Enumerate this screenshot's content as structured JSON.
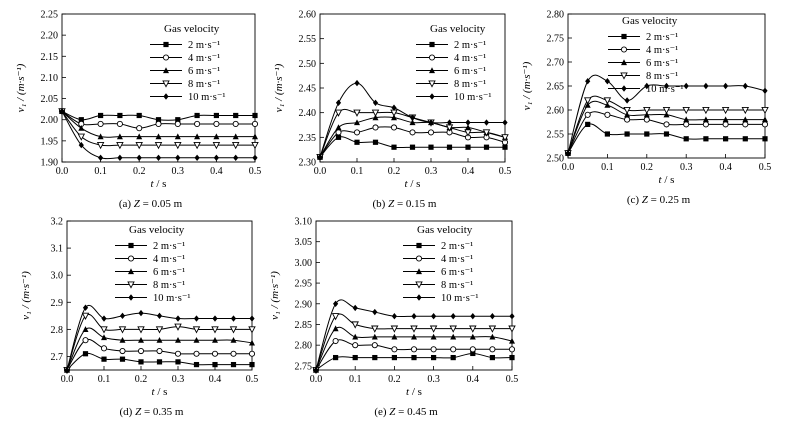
{
  "figure": {
    "series_labels": [
      "2 m·s⁻¹",
      "4 m·s⁻¹",
      "6 m·s⁻¹",
      "8 m·s⁻¹",
      "10 m·s⁻¹"
    ],
    "markers": [
      "square",
      "circle-open",
      "triangle",
      "triangle-down-open",
      "diamond"
    ]
  },
  "chart_data": [
    {
      "type": "line",
      "caption_prefix": "(a) ",
      "caption_var": "Z",
      "caption_suffix": " = 0.05 m",
      "xlabel_var": "t",
      "xlabel_unit": " / s",
      "ylabel": "v₁ / (m·s⁻¹)",
      "legend_title": "Gas velocity",
      "xlim": [
        0,
        0.5
      ],
      "ylim": [
        1.9,
        2.25
      ],
      "xticks": [
        0.0,
        0.1,
        0.2,
        0.3,
        0.4,
        0.5
      ],
      "xtick_labels": [
        "0.0",
        "0.1",
        "0.2",
        "0.3",
        "0.4",
        "0.5"
      ],
      "yticks": [
        1.9,
        1.95,
        2.0,
        2.05,
        2.1,
        2.15,
        2.2,
        2.25
      ],
      "ytick_labels": [
        "1.90",
        "1.95",
        "2.00",
        "2.05",
        "2.10",
        "2.15",
        "2.20",
        "2.25"
      ],
      "x": [
        0.0,
        0.05,
        0.1,
        0.15,
        0.2,
        0.25,
        0.3,
        0.35,
        0.4,
        0.45,
        0.5
      ],
      "series": [
        {
          "name": "2 m·s⁻¹",
          "values": [
            2.02,
            2.0,
            2.01,
            2.01,
            2.01,
            2.0,
            2.0,
            2.01,
            2.01,
            2.01,
            2.01
          ]
        },
        {
          "name": "4 m·s⁻¹",
          "values": [
            2.02,
            1.99,
            1.99,
            1.99,
            1.98,
            1.99,
            1.99,
            1.99,
            1.99,
            1.99,
            1.99
          ]
        },
        {
          "name": "6 m·s⁻¹",
          "values": [
            2.02,
            1.98,
            1.96,
            1.96,
            1.96,
            1.96,
            1.96,
            1.96,
            1.96,
            1.96,
            1.96
          ]
        },
        {
          "name": "8 m·s⁻¹",
          "values": [
            2.02,
            1.96,
            1.94,
            1.94,
            1.94,
            1.94,
            1.94,
            1.94,
            1.94,
            1.94,
            1.94
          ]
        },
        {
          "name": "10 m·s⁻¹",
          "values": [
            2.02,
            1.94,
            1.91,
            1.91,
            1.91,
            1.91,
            1.91,
            1.91,
            1.91,
            1.91,
            1.91
          ]
        }
      ]
    },
    {
      "type": "line",
      "caption_prefix": "(b) ",
      "caption_var": "Z",
      "caption_suffix": " = 0.15 m",
      "xlabel_var": "t",
      "xlabel_unit": " / s",
      "ylabel": "v₁ / (m·s⁻¹)",
      "legend_title": "Gas velocity",
      "xlim": [
        0,
        0.5
      ],
      "ylim": [
        2.3,
        2.6
      ],
      "xticks": [
        0.0,
        0.1,
        0.2,
        0.3,
        0.4,
        0.5
      ],
      "xtick_labels": [
        "0.0",
        "0.1",
        "0.2",
        "0.3",
        "0.4",
        "0.5"
      ],
      "yticks": [
        2.3,
        2.35,
        2.4,
        2.45,
        2.5,
        2.55,
        2.6
      ],
      "ytick_labels": [
        "2.30",
        "2.35",
        "2.40",
        "2.45",
        "2.50",
        "2.55",
        "2.60"
      ],
      "x": [
        0.0,
        0.05,
        0.1,
        0.15,
        0.2,
        0.25,
        0.3,
        0.35,
        0.4,
        0.45,
        0.5
      ],
      "series": [
        {
          "name": "2 m·s⁻¹",
          "values": [
            2.31,
            2.35,
            2.34,
            2.34,
            2.33,
            2.33,
            2.33,
            2.33,
            2.33,
            2.33,
            2.33
          ]
        },
        {
          "name": "4 m·s⁻¹",
          "values": [
            2.31,
            2.36,
            2.36,
            2.37,
            2.37,
            2.36,
            2.36,
            2.36,
            2.35,
            2.35,
            2.34
          ]
        },
        {
          "name": "6 m·s⁻¹",
          "values": [
            2.31,
            2.37,
            2.38,
            2.39,
            2.39,
            2.38,
            2.38,
            2.37,
            2.37,
            2.36,
            2.35
          ]
        },
        {
          "name": "8 m·s⁻¹",
          "values": [
            2.31,
            2.4,
            2.4,
            2.4,
            2.4,
            2.39,
            2.38,
            2.37,
            2.36,
            2.36,
            2.35
          ]
        },
        {
          "name": "10 m·s⁻¹",
          "values": [
            2.31,
            2.42,
            2.46,
            2.42,
            2.41,
            2.39,
            2.38,
            2.38,
            2.38,
            2.38,
            2.38
          ]
        }
      ]
    },
    {
      "type": "line",
      "caption_prefix": "(c) ",
      "caption_var": "Z",
      "caption_suffix": " = 0.25 m",
      "xlabel_var": "t",
      "xlabel_unit": " / s",
      "ylabel": "v₁ / (m·s⁻¹)",
      "legend_title": "Gas velocity",
      "xlim": [
        0,
        0.5
      ],
      "ylim": [
        2.5,
        2.8
      ],
      "xticks": [
        0.0,
        0.1,
        0.2,
        0.3,
        0.4,
        0.5
      ],
      "xtick_labels": [
        "0.0",
        "0.1",
        "0.2",
        "0.3",
        "0.4",
        "0.5"
      ],
      "yticks": [
        2.5,
        2.55,
        2.6,
        2.65,
        2.7,
        2.75,
        2.8
      ],
      "ytick_labels": [
        "2.50",
        "2.55",
        "2.60",
        "2.65",
        "2.70",
        "2.75",
        "2.80"
      ],
      "x": [
        0.0,
        0.05,
        0.1,
        0.15,
        0.2,
        0.25,
        0.3,
        0.35,
        0.4,
        0.45,
        0.5
      ],
      "series": [
        {
          "name": "2 m·s⁻¹",
          "values": [
            2.51,
            2.57,
            2.55,
            2.55,
            2.55,
            2.55,
            2.54,
            2.54,
            2.54,
            2.54,
            2.54
          ]
        },
        {
          "name": "4 m·s⁻¹",
          "values": [
            2.51,
            2.59,
            2.59,
            2.58,
            2.58,
            2.57,
            2.57,
            2.57,
            2.57,
            2.57,
            2.57
          ]
        },
        {
          "name": "6 m·s⁻¹",
          "values": [
            2.51,
            2.61,
            2.61,
            2.59,
            2.59,
            2.59,
            2.58,
            2.58,
            2.58,
            2.58,
            2.58
          ]
        },
        {
          "name": "8 m·s⁻¹",
          "values": [
            2.51,
            2.62,
            2.62,
            2.6,
            2.6,
            2.6,
            2.6,
            2.6,
            2.6,
            2.6,
            2.6
          ]
        },
        {
          "name": "10 m·s⁻¹",
          "values": [
            2.51,
            2.66,
            2.66,
            2.62,
            2.65,
            2.65,
            2.65,
            2.65,
            2.65,
            2.65,
            2.64
          ]
        }
      ]
    },
    {
      "type": "line",
      "caption_prefix": "(d) ",
      "caption_var": "Z",
      "caption_suffix": " = 0.35 m",
      "xlabel_var": "t",
      "xlabel_unit": " / s",
      "ylabel": "v₁ / (m·s⁻¹)",
      "legend_title": "Gas velocity",
      "xlim": [
        0,
        0.5
      ],
      "ylim": [
        2.65,
        3.2
      ],
      "xticks": [
        0.0,
        0.1,
        0.2,
        0.3,
        0.4,
        0.5
      ],
      "xtick_labels": [
        "0.0",
        "0.1",
        "0.2",
        "0.3",
        "0.4",
        "0.5"
      ],
      "yticks": [
        2.7,
        2.8,
        2.9,
        3.0,
        3.1,
        3.2
      ],
      "ytick_labels": [
        "2.7",
        "2.8",
        "2.9",
        "3.0",
        "3.1",
        "3.2"
      ],
      "x": [
        0.0,
        0.05,
        0.1,
        0.15,
        0.2,
        0.25,
        0.3,
        0.35,
        0.4,
        0.45,
        0.5
      ],
      "series": [
        {
          "name": "2 m·s⁻¹",
          "values": [
            2.65,
            2.71,
            2.69,
            2.69,
            2.68,
            2.68,
            2.68,
            2.67,
            2.67,
            2.67,
            2.67
          ]
        },
        {
          "name": "4 m·s⁻¹",
          "values": [
            2.65,
            2.76,
            2.73,
            2.72,
            2.72,
            2.72,
            2.71,
            2.71,
            2.71,
            2.71,
            2.71
          ]
        },
        {
          "name": "6 m·s⁻¹",
          "values": [
            2.65,
            2.8,
            2.77,
            2.76,
            2.76,
            2.76,
            2.76,
            2.76,
            2.76,
            2.76,
            2.75
          ]
        },
        {
          "name": "8 m·s⁻¹",
          "values": [
            2.65,
            2.85,
            2.8,
            2.8,
            2.8,
            2.8,
            2.81,
            2.8,
            2.8,
            2.8,
            2.8
          ]
        },
        {
          "name": "10 m·s⁻¹",
          "values": [
            2.65,
            2.88,
            2.84,
            2.85,
            2.86,
            2.85,
            2.84,
            2.84,
            2.84,
            2.84,
            2.84
          ]
        }
      ]
    },
    {
      "type": "line",
      "caption_prefix": "(e) ",
      "caption_var": "Z",
      "caption_suffix": " = 0.45 m",
      "xlabel_var": "t",
      "xlabel_unit": " / s",
      "ylabel": "v₁ / (m·s⁻¹)",
      "legend_title": "Gas velocity",
      "xlim": [
        0,
        0.5
      ],
      "ylim": [
        2.74,
        3.1
      ],
      "xticks": [
        0.0,
        0.1,
        0.2,
        0.3,
        0.4,
        0.5
      ],
      "xtick_labels": [
        "0.0",
        "0.1",
        "0.2",
        "0.3",
        "0.4",
        "0.5"
      ],
      "yticks": [
        2.75,
        2.8,
        2.85,
        2.9,
        2.95,
        3.0,
        3.05,
        3.1
      ],
      "ytick_labels": [
        "2.75",
        "2.80",
        "2.85",
        "2.90",
        "2.95",
        "3.00",
        "3.05",
        "3.10"
      ],
      "x": [
        0.0,
        0.05,
        0.1,
        0.15,
        0.2,
        0.25,
        0.3,
        0.35,
        0.4,
        0.45,
        0.5
      ],
      "series": [
        {
          "name": "2 m·s⁻¹",
          "values": [
            2.74,
            2.77,
            2.77,
            2.77,
            2.77,
            2.77,
            2.77,
            2.77,
            2.78,
            2.77,
            2.77
          ]
        },
        {
          "name": "4 m·s⁻¹",
          "values": [
            2.74,
            2.81,
            2.8,
            2.8,
            2.79,
            2.79,
            2.79,
            2.79,
            2.79,
            2.79,
            2.79
          ]
        },
        {
          "name": "6 m·s⁻¹",
          "values": [
            2.74,
            2.84,
            2.82,
            2.82,
            2.82,
            2.82,
            2.82,
            2.82,
            2.82,
            2.82,
            2.81
          ]
        },
        {
          "name": "8 m·s⁻¹",
          "values": [
            2.74,
            2.87,
            2.85,
            2.84,
            2.84,
            2.84,
            2.84,
            2.84,
            2.84,
            2.84,
            2.84
          ]
        },
        {
          "name": "10 m·s⁻¹",
          "values": [
            2.74,
            2.9,
            2.89,
            2.88,
            2.87,
            2.87,
            2.87,
            2.87,
            2.87,
            2.87,
            2.87
          ]
        }
      ]
    }
  ]
}
